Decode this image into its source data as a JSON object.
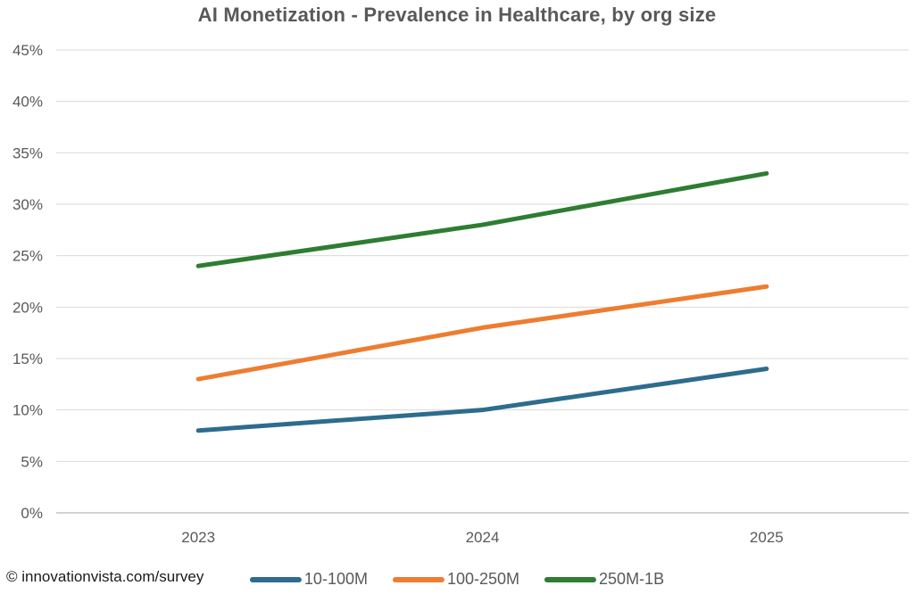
{
  "chart_data": {
    "type": "line",
    "title": "AI Monetization - Prevalence in Healthcare, by org size",
    "categories": [
      "2023",
      "2024",
      "2025"
    ],
    "series": [
      {
        "name": "10-100M",
        "color": "#2E6C8E",
        "values": [
          8,
          10,
          14
        ]
      },
      {
        "name": "100-250M",
        "color": "#ED7D31",
        "values": [
          13,
          18,
          22
        ]
      },
      {
        "name": "250M-1B",
        "color": "#2E7D32",
        "values": [
          24,
          28,
          33
        ]
      }
    ],
    "xlabel": "",
    "ylabel": "",
    "ylim": [
      0,
      45
    ],
    "ytick_step": 5,
    "ytick_suffix": "%",
    "grid": true,
    "legend_position": "bottom"
  },
  "footer": {
    "credit": "© innovationvista.com/survey"
  },
  "colors": {
    "title_text": "#595959",
    "axis_text": "#595959",
    "gridline": "#D9D9D9",
    "baseline": "#D2D2D2",
    "footer_text": "#1A1A1A"
  }
}
